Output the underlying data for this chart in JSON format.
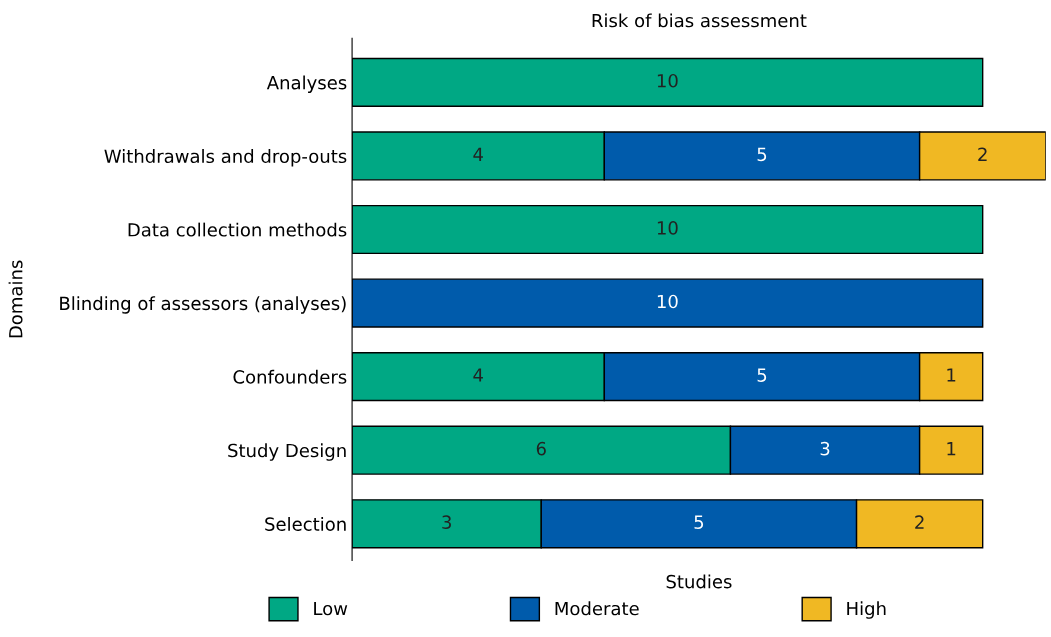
{
  "chart_data": {
    "type": "bar",
    "orientation": "horizontal",
    "stacked": true,
    "title": "Risk of bias assessment",
    "xlabel": "Studies",
    "ylabel": "Domains",
    "xlim": [
      0,
      11
    ],
    "data_labels": true,
    "categories": [
      "Analyses",
      "Withdrawals and drop-outs",
      "Data collection methods",
      "Blinding of assessors (analyses)",
      "Confounders",
      "Study Design",
      "Selection"
    ],
    "series": [
      {
        "name": "Low",
        "color": "#00a884",
        "values": [
          10,
          4,
          10,
          null,
          4,
          6,
          3
        ]
      },
      {
        "name": "Moderate",
        "color": "#005bab",
        "values": [
          null,
          5,
          null,
          10,
          5,
          3,
          5
        ]
      },
      {
        "name": "High",
        "color": "#f0b823",
        "values": [
          null,
          2,
          null,
          null,
          1,
          1,
          2
        ]
      }
    ],
    "grid": false,
    "legend": "bottom"
  }
}
